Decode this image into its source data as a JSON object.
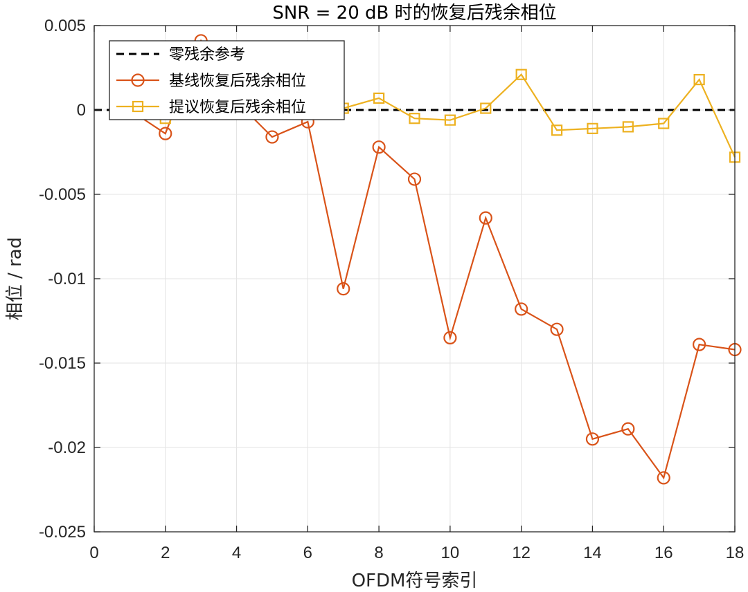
{
  "chart_data": {
    "type": "line",
    "title": "SNR = 20 dB 时的恢复后残余相位",
    "xlabel": "OFDM符号索引",
    "ylabel": "相位 / rad",
    "xlim": [
      0,
      18
    ],
    "ylim": [
      -0.025,
      0.005
    ],
    "xticks": [
      0,
      2,
      4,
      6,
      8,
      10,
      12,
      14,
      16,
      18
    ],
    "xtick_labels": [
      "0",
      "2",
      "4",
      "6",
      "8",
      "10",
      "12",
      "14",
      "16",
      "18"
    ],
    "yticks": [
      0.005,
      0,
      -0.005,
      -0.01,
      -0.015,
      -0.02,
      -0.025
    ],
    "ytick_labels": [
      "0.005",
      "0",
      "-0.005",
      "-0.01",
      "-0.015",
      "-0.02",
      "-0.025"
    ],
    "grid": true,
    "legend_position": "top-left",
    "series": [
      {
        "name": "零残余参考",
        "style": "dashed",
        "marker": "none",
        "color": "#000000",
        "x": [
          0,
          18
        ],
        "y": [
          0,
          0
        ]
      },
      {
        "name": "基线恢复后残余相位",
        "style": "solid",
        "marker": "circle",
        "color": "#D95319",
        "x": [
          1,
          2,
          3,
          4,
          5,
          6,
          7,
          8,
          9,
          10,
          11,
          12,
          13,
          14,
          15,
          16,
          17,
          18
        ],
        "y": [
          0.0,
          -0.0014,
          0.0041,
          0.0005,
          -0.0016,
          -0.0007,
          -0.0106,
          -0.0022,
          -0.0041,
          -0.0135,
          -0.0064,
          -0.0118,
          -0.013,
          -0.0195,
          -0.0189,
          -0.0218,
          -0.0139,
          -0.0142
        ]
      },
      {
        "name": "提议恢复后残余相位",
        "style": "solid",
        "marker": "square",
        "color": "#EDB120",
        "x": [
          1,
          2,
          3,
          4,
          5,
          6,
          7,
          8,
          9,
          10,
          11,
          12,
          13,
          14,
          15,
          16,
          17,
          18
        ],
        "y": [
          0.0,
          -0.0005,
          0.0,
          0.0,
          0.0,
          0.0,
          0.0001,
          0.0007,
          -0.0005,
          -0.0006,
          0.0001,
          0.0021,
          -0.0012,
          -0.0011,
          -0.001,
          -0.0008,
          0.0018,
          -0.0028
        ]
      }
    ]
  }
}
